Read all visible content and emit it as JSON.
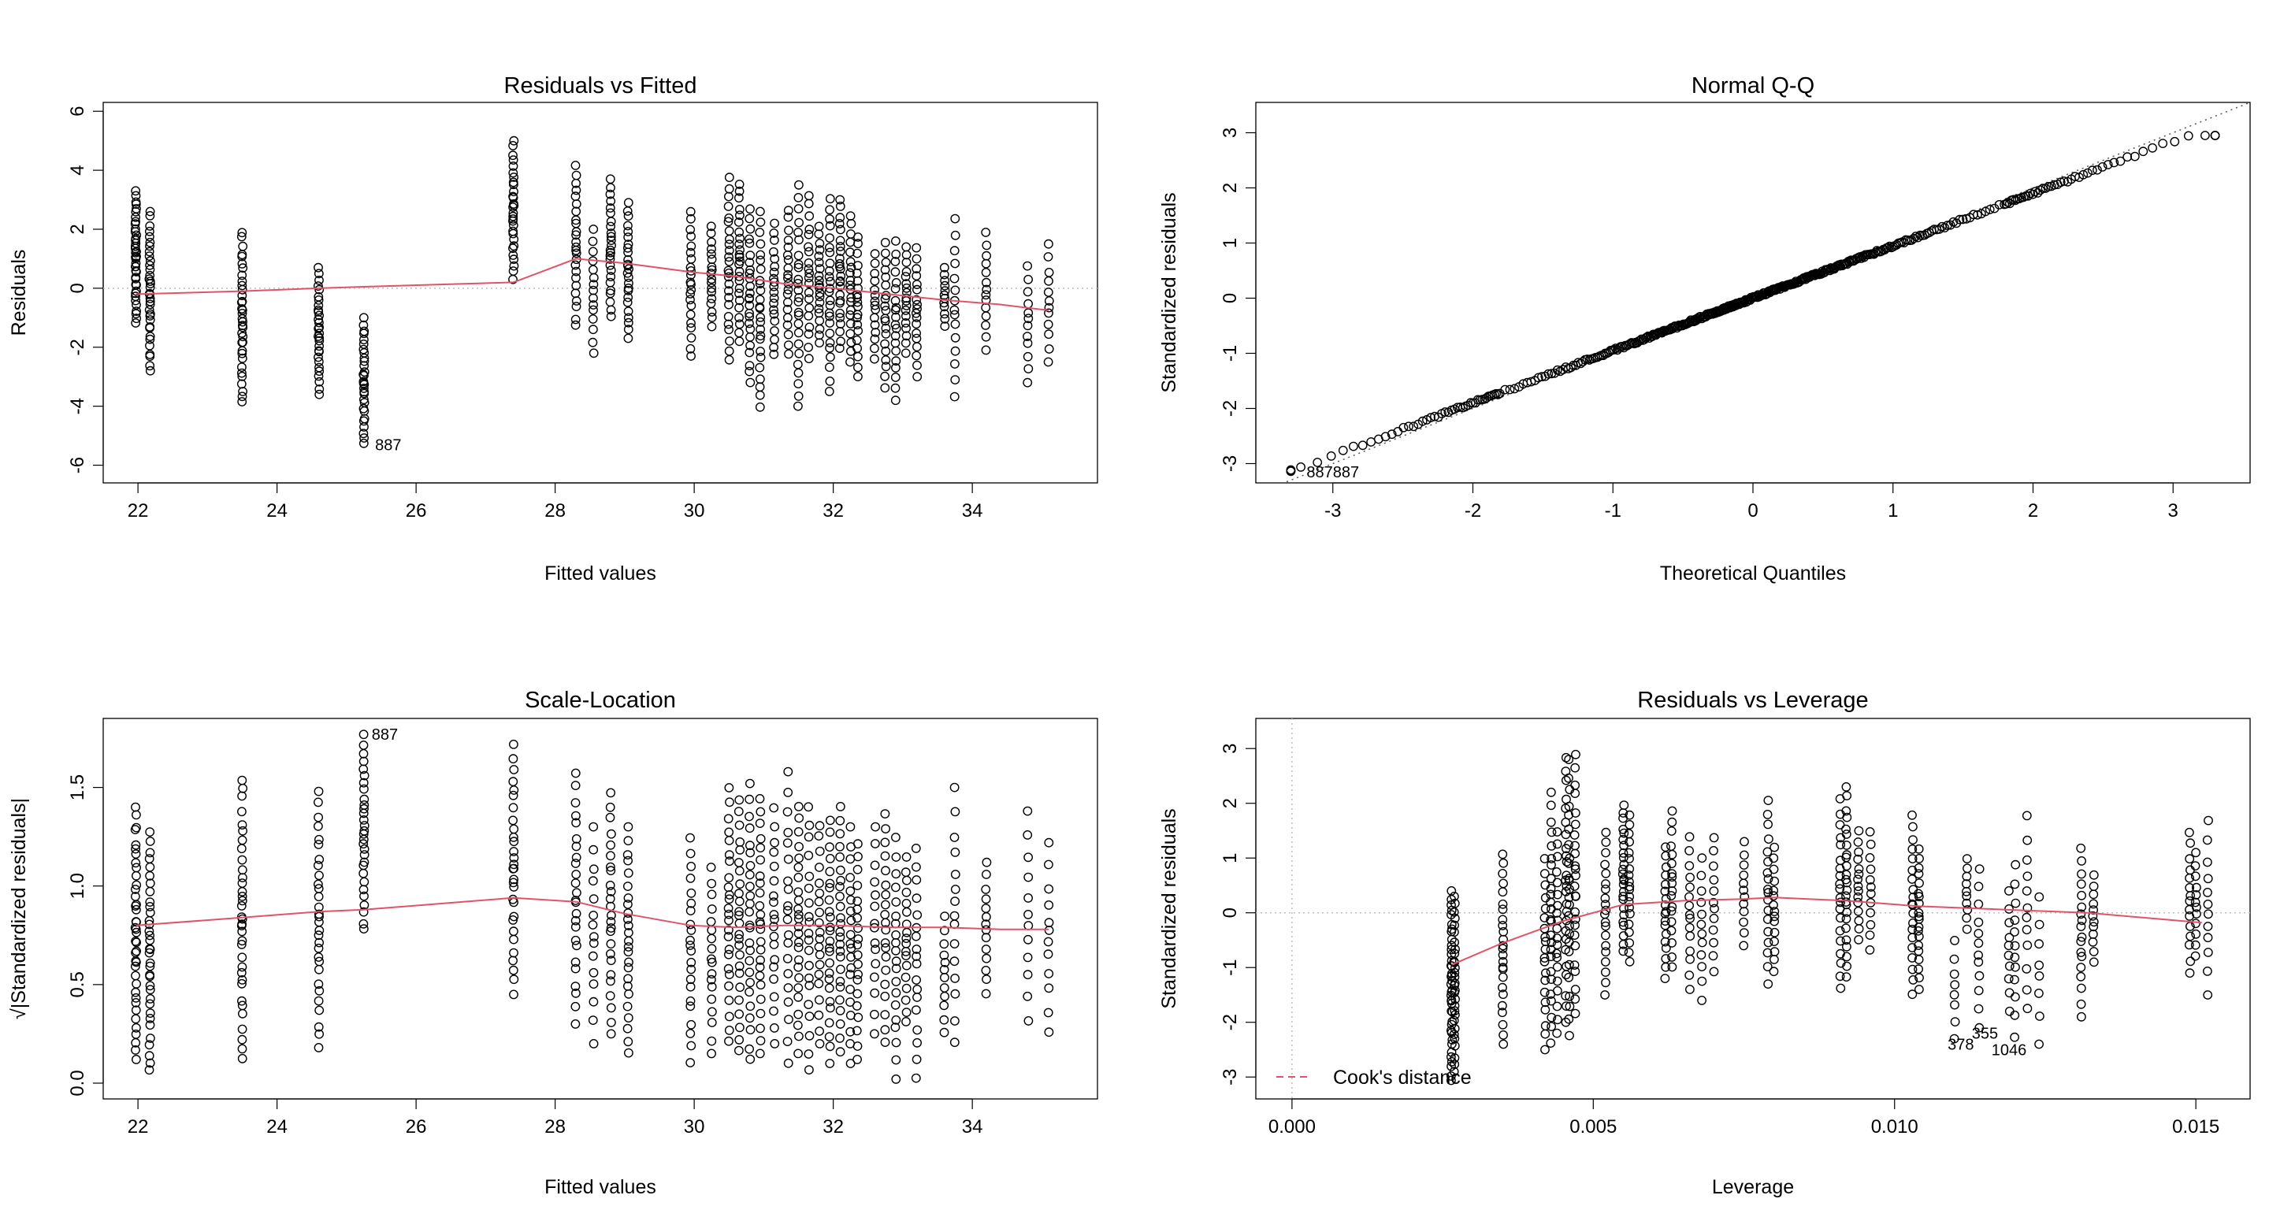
{
  "figure": {
    "colors": {
      "points": "#000000",
      "smooth": "#DF536B",
      "reference": "#BEBEBE"
    }
  },
  "chart_data": [
    {
      "type": "scatter",
      "title": "Residuals vs Fitted",
      "xlabel": "Fitted values",
      "ylabel": "Residuals",
      "xlim": [
        21.5,
        35.8
      ],
      "ylim": [
        -6.6,
        6.3
      ],
      "xticks": [
        22,
        24,
        26,
        28,
        30,
        32,
        34
      ],
      "yticks": [
        -6,
        -4,
        -2,
        0,
        2,
        4,
        6
      ],
      "reference_line": {
        "y": 0,
        "style": "dotted"
      },
      "columns": [
        {
          "x": 21.97,
          "min": -1.2,
          "max": 3.3,
          "n": 40
        },
        {
          "x": 22.17,
          "min": -2.8,
          "max": 2.6,
          "n": 35
        },
        {
          "x": 23.5,
          "min": -3.9,
          "max": 1.9,
          "n": 35
        },
        {
          "x": 24.6,
          "min": -3.6,
          "max": 0.7,
          "n": 30
        },
        {
          "x": 25.25,
          "min": -5.3,
          "max": -1.0,
          "n": 30
        },
        {
          "x": 27.4,
          "min": 0.3,
          "max": 5.0,
          "n": 30
        },
        {
          "x": 28.3,
          "min": -1.3,
          "max": 4.2,
          "n": 25
        },
        {
          "x": 28.55,
          "min": -2.2,
          "max": 2.0,
          "n": 15
        },
        {
          "x": 28.8,
          "min": -1.0,
          "max": 3.7,
          "n": 25
        },
        {
          "x": 29.05,
          "min": -1.7,
          "max": 2.9,
          "n": 25
        },
        {
          "x": 29.95,
          "min": -2.3,
          "max": 2.6,
          "n": 22
        },
        {
          "x": 30.25,
          "min": -1.3,
          "max": 2.1,
          "n": 18
        },
        {
          "x": 30.5,
          "min": -2.5,
          "max": 3.8,
          "n": 25
        },
        {
          "x": 30.65,
          "min": -1.8,
          "max": 3.6,
          "n": 25
        },
        {
          "x": 30.8,
          "min": -3.2,
          "max": 2.7,
          "n": 25
        },
        {
          "x": 30.95,
          "min": -4.1,
          "max": 2.6,
          "n": 25
        },
        {
          "x": 31.15,
          "min": -2.3,
          "max": 2.2,
          "n": 20
        },
        {
          "x": 31.35,
          "min": -2.3,
          "max": 2.7,
          "n": 20
        },
        {
          "x": 31.5,
          "min": -4.1,
          "max": 3.5,
          "n": 25
        },
        {
          "x": 31.65,
          "min": -2.4,
          "max": 3.2,
          "n": 20
        },
        {
          "x": 31.8,
          "min": -1.9,
          "max": 2.1,
          "n": 20
        },
        {
          "x": 31.95,
          "min": -3.5,
          "max": 3.1,
          "n": 25
        },
        {
          "x": 32.1,
          "min": -2.1,
          "max": 3.0,
          "n": 25
        },
        {
          "x": 32.25,
          "min": -2.5,
          "max": 2.5,
          "n": 20
        },
        {
          "x": 32.35,
          "min": -3.0,
          "max": 1.8,
          "n": 20
        },
        {
          "x": 32.6,
          "min": -2.4,
          "max": 1.2,
          "n": 15
        },
        {
          "x": 32.75,
          "min": -3.4,
          "max": 1.6,
          "n": 20
        },
        {
          "x": 32.9,
          "min": -3.8,
          "max": 1.6,
          "n": 20
        },
        {
          "x": 33.05,
          "min": -2.2,
          "max": 1.4,
          "n": 18
        },
        {
          "x": 33.2,
          "min": -3.0,
          "max": 1.4,
          "n": 18
        },
        {
          "x": 33.6,
          "min": -1.3,
          "max": 0.7,
          "n": 12
        },
        {
          "x": 33.75,
          "min": -3.7,
          "max": 2.4,
          "n": 15
        },
        {
          "x": 34.2,
          "min": -2.1,
          "max": 1.9,
          "n": 14
        },
        {
          "x": 34.8,
          "min": -3.2,
          "max": 0.8,
          "n": 12
        },
        {
          "x": 35.1,
          "min": -2.5,
          "max": 1.5,
          "n": 12
        }
      ],
      "smooth": {
        "x": [
          21.97,
          23.5,
          24.6,
          25.25,
          27.4,
          28.3,
          29.0,
          29.95,
          30.6,
          31.3,
          32.0,
          32.8,
          33.6,
          34.4,
          35.1
        ],
        "y": [
          -0.2,
          -0.1,
          0.0,
          0.05,
          0.2,
          1.0,
          0.85,
          0.55,
          0.4,
          0.15,
          0.0,
          -0.2,
          -0.4,
          -0.55,
          -0.75
        ]
      },
      "point_labels": {
        "text": "887",
        "x": 25.6,
        "y": -5.3
      }
    },
    {
      "type": "scatter",
      "title": "Normal Q-Q",
      "xlabel": "Theoretical Quantiles",
      "ylabel": "Standardized residuals",
      "xlim": [
        -3.55,
        3.55
      ],
      "ylim": [
        -3.35,
        3.55
      ],
      "xticks": [
        -3,
        -2,
        -1,
        0,
        1,
        2,
        3
      ],
      "yticks": [
        -3,
        -2,
        -1,
        0,
        1,
        2,
        3
      ],
      "reference_line": {
        "intercept": 0,
        "slope": 1,
        "style": "dotted"
      },
      "qq_points": {
        "x_min": -3.3,
        "x_max": 3.3,
        "y_min": -3.15,
        "y_max": 2.95,
        "n": 1100
      },
      "point_labels": {
        "text": "887887",
        "x": -3.0,
        "y": -3.15
      }
    },
    {
      "type": "scatter",
      "title": "Scale-Location",
      "xlabel": "Fitted values",
      "ylabel": "√|Standardized residuals|",
      "xlim": [
        21.5,
        35.8
      ],
      "ylim": [
        -0.08,
        1.85
      ],
      "xticks": [
        22,
        24,
        26,
        28,
        30,
        32,
        34
      ],
      "yticks": [
        0.0,
        0.5,
        1.0,
        1.5
      ],
      "columns": [
        {
          "x": 21.97,
          "min": 0.12,
          "max": 1.4,
          "n": 40
        },
        {
          "x": 22.17,
          "min": 0.05,
          "max": 1.28,
          "n": 35
        },
        {
          "x": 23.5,
          "min": 0.12,
          "max": 1.55,
          "n": 35
        },
        {
          "x": 24.6,
          "min": 0.18,
          "max": 1.48,
          "n": 30
        },
        {
          "x": 25.25,
          "min": 0.77,
          "max": 1.77,
          "n": 30
        },
        {
          "x": 27.4,
          "min": 0.45,
          "max": 1.72,
          "n": 30
        },
        {
          "x": 28.3,
          "min": 0.3,
          "max": 1.58,
          "n": 25
        },
        {
          "x": 28.55,
          "min": 0.2,
          "max": 1.3,
          "n": 15
        },
        {
          "x": 28.8,
          "min": 0.25,
          "max": 1.48,
          "n": 25
        },
        {
          "x": 29.05,
          "min": 0.15,
          "max": 1.3,
          "n": 25
        },
        {
          "x": 29.95,
          "min": 0.1,
          "max": 1.25,
          "n": 22
        },
        {
          "x": 30.25,
          "min": 0.15,
          "max": 1.1,
          "n": 18
        },
        {
          "x": 30.5,
          "min": 0.2,
          "max": 1.5,
          "n": 25
        },
        {
          "x": 30.65,
          "min": 0.15,
          "max": 1.45,
          "n": 25
        },
        {
          "x": 30.8,
          "min": 0.1,
          "max": 1.52,
          "n": 25
        },
        {
          "x": 30.95,
          "min": 0.15,
          "max": 1.45,
          "n": 25
        },
        {
          "x": 31.15,
          "min": 0.2,
          "max": 1.4,
          "n": 20
        },
        {
          "x": 31.35,
          "min": 0.1,
          "max": 1.58,
          "n": 20
        },
        {
          "x": 31.5,
          "min": 0.15,
          "max": 1.42,
          "n": 25
        },
        {
          "x": 31.65,
          "min": 0.05,
          "max": 1.42,
          "n": 20
        },
        {
          "x": 31.8,
          "min": 0.2,
          "max": 1.32,
          "n": 20
        },
        {
          "x": 31.95,
          "min": 0.1,
          "max": 1.35,
          "n": 25
        },
        {
          "x": 32.1,
          "min": 0.15,
          "max": 1.42,
          "n": 25
        },
        {
          "x": 32.25,
          "min": 0.1,
          "max": 1.3,
          "n": 20
        },
        {
          "x": 32.35,
          "min": 0.12,
          "max": 1.22,
          "n": 20
        },
        {
          "x": 32.6,
          "min": 0.25,
          "max": 1.3,
          "n": 15
        },
        {
          "x": 32.75,
          "min": 0.2,
          "max": 1.38,
          "n": 20
        },
        {
          "x": 32.9,
          "min": 0.02,
          "max": 1.25,
          "n": 20
        },
        {
          "x": 33.05,
          "min": 0.3,
          "max": 1.15,
          "n": 18
        },
        {
          "x": 33.2,
          "min": 0.02,
          "max": 1.2,
          "n": 18
        },
        {
          "x": 33.6,
          "min": 0.25,
          "max": 0.85,
          "n": 12
        },
        {
          "x": 33.75,
          "min": 0.2,
          "max": 1.5,
          "n": 15
        },
        {
          "x": 34.2,
          "min": 0.45,
          "max": 1.12,
          "n": 14
        },
        {
          "x": 34.8,
          "min": 0.3,
          "max": 1.38,
          "n": 12
        },
        {
          "x": 35.1,
          "min": 0.25,
          "max": 1.22,
          "n": 12
        }
      ],
      "smooth": {
        "x": [
          21.97,
          23.5,
          24.6,
          25.25,
          27.4,
          28.3,
          29.0,
          29.95,
          30.6,
          31.3,
          32.0,
          32.8,
          33.6,
          34.4,
          35.1
        ],
        "y": [
          0.8,
          0.84,
          0.87,
          0.88,
          0.94,
          0.92,
          0.86,
          0.8,
          0.79,
          0.8,
          0.8,
          0.79,
          0.79,
          0.78,
          0.78
        ]
      },
      "point_labels": {
        "text": "887",
        "x": 25.55,
        "y": 1.77
      }
    },
    {
      "type": "scatter",
      "title": "Residuals vs Leverage",
      "xlabel": "Leverage",
      "ylabel": "Standardized residuals",
      "xlim": [
        -0.0006,
        0.0159
      ],
      "ylim": [
        -3.4,
        3.55
      ],
      "xticks": [
        0.0,
        0.005,
        0.01,
        0.015
      ],
      "xtick_labels": [
        "0.000",
        "0.005",
        "0.010",
        "0.015"
      ],
      "yticks": [
        -3,
        -2,
        -1,
        0,
        1,
        2,
        3
      ],
      "reference_lines": {
        "y": 0,
        "x": 0,
        "style": "dotted"
      },
      "legend": {
        "label": "Cook's distance",
        "position": "bottom-left",
        "style": "dashed"
      },
      "columns": [
        {
          "x": 0.00265,
          "min": -3.1,
          "max": 0.4,
          "n": 40
        },
        {
          "x": 0.0027,
          "min": -2.9,
          "max": 0.3,
          "n": 30
        },
        {
          "x": 0.0035,
          "min": -2.4,
          "max": 1.1,
          "n": 25
        },
        {
          "x": 0.0042,
          "min": -2.5,
          "max": 1.0,
          "n": 20
        },
        {
          "x": 0.0043,
          "min": -2.4,
          "max": 2.2,
          "n": 25
        },
        {
          "x": 0.0044,
          "min": -2.2,
          "max": 1.5,
          "n": 20
        },
        {
          "x": 0.00455,
          "min": -2.0,
          "max": 2.9,
          "n": 25
        },
        {
          "x": 0.0046,
          "min": -2.3,
          "max": 2.8,
          "n": 25
        },
        {
          "x": 0.0047,
          "min": -1.9,
          "max": 2.9,
          "n": 25
        },
        {
          "x": 0.0052,
          "min": -1.5,
          "max": 1.5,
          "n": 20
        },
        {
          "x": 0.0055,
          "min": -0.7,
          "max": 2.0,
          "n": 25
        },
        {
          "x": 0.0056,
          "min": -0.9,
          "max": 1.8,
          "n": 20
        },
        {
          "x": 0.0062,
          "min": -1.2,
          "max": 1.2,
          "n": 18
        },
        {
          "x": 0.0063,
          "min": -1.0,
          "max": 1.9,
          "n": 18
        },
        {
          "x": 0.0066,
          "min": -1.4,
          "max": 1.4,
          "n": 15
        },
        {
          "x": 0.0068,
          "min": -1.6,
          "max": 1.0,
          "n": 12
        },
        {
          "x": 0.007,
          "min": -1.1,
          "max": 1.4,
          "n": 12
        },
        {
          "x": 0.0075,
          "min": -0.6,
          "max": 1.3,
          "n": 12
        },
        {
          "x": 0.0079,
          "min": -1.3,
          "max": 2.1,
          "n": 18
        },
        {
          "x": 0.008,
          "min": -1.1,
          "max": 1.2,
          "n": 15
        },
        {
          "x": 0.0091,
          "min": -1.4,
          "max": 2.1,
          "n": 20
        },
        {
          "x": 0.0092,
          "min": -1.2,
          "max": 2.3,
          "n": 25
        },
        {
          "x": 0.0094,
          "min": -0.5,
          "max": 1.5,
          "n": 15
        },
        {
          "x": 0.0096,
          "min": -0.7,
          "max": 1.5,
          "n": 12
        },
        {
          "x": 0.0103,
          "min": -1.5,
          "max": 1.8,
          "n": 20
        },
        {
          "x": 0.0104,
          "min": -1.4,
          "max": 1.2,
          "n": 20
        },
        {
          "x": 0.011,
          "min": -2.3,
          "max": -0.5,
          "n": 8
        },
        {
          "x": 0.0112,
          "min": -0.3,
          "max": 1.0,
          "n": 10
        },
        {
          "x": 0.0114,
          "min": -2.1,
          "max": 0.8,
          "n": 12
        },
        {
          "x": 0.0119,
          "min": -1.8,
          "max": 0.4,
          "n": 10
        },
        {
          "x": 0.012,
          "min": -2.3,
          "max": 0.9,
          "n": 12
        },
        {
          "x": 0.0122,
          "min": -1.8,
          "max": 1.8,
          "n": 12
        },
        {
          "x": 0.0124,
          "min": -2.4,
          "max": 0.3,
          "n": 8
        },
        {
          "x": 0.0131,
          "min": -1.9,
          "max": 1.2,
          "n": 18
        },
        {
          "x": 0.0133,
          "min": -0.9,
          "max": 0.7,
          "n": 12
        },
        {
          "x": 0.0149,
          "min": -1.1,
          "max": 1.5,
          "n": 15
        },
        {
          "x": 0.015,
          "min": -0.8,
          "max": 1.1,
          "n": 12
        },
        {
          "x": 0.0152,
          "min": -1.5,
          "max": 1.7,
          "n": 12
        }
      ],
      "smooth": {
        "x": [
          0.00265,
          0.0035,
          0.0045,
          0.0055,
          0.0065,
          0.0075,
          0.008,
          0.0092,
          0.0104,
          0.012,
          0.0132,
          0.0151
        ],
        "y": [
          -0.95,
          -0.55,
          -0.15,
          0.15,
          0.22,
          0.25,
          0.28,
          0.22,
          0.12,
          0.05,
          0.0,
          -0.18
        ]
      },
      "point_labels": [
        {
          "text": "378",
          "x": 0.0111,
          "y": -2.4
        },
        {
          "text": "355",
          "x": 0.0115,
          "y": -2.2
        },
        {
          "text": "1046",
          "x": 0.0119,
          "y": -2.5
        }
      ]
    }
  ]
}
